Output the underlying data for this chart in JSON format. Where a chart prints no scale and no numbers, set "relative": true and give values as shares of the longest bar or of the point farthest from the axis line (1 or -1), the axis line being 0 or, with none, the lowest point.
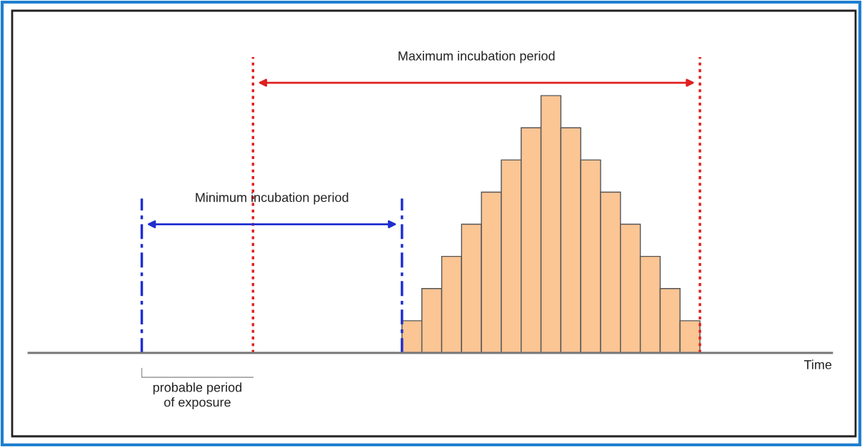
{
  "chart_data": {
    "type": "bar",
    "relative": true,
    "categories": [
      null,
      null,
      null,
      null,
      null,
      null,
      null,
      null,
      null,
      null,
      null,
      null,
      null,
      null,
      null
    ],
    "series": [
      {
        "color": "#fbc594",
        "values": [
          0.125,
          0.25,
          0.375,
          0.5,
          0.625,
          0.75,
          0.875,
          1,
          0.875,
          0.75,
          0.625,
          0.5,
          0.375,
          0.25,
          0.125
        ]
      }
    ],
    "annotations": [
      "Minimum incubation period",
      "Maximum incubation period",
      "probable period\nof exposure",
      "Time"
    ],
    "grid": false
  }
}
